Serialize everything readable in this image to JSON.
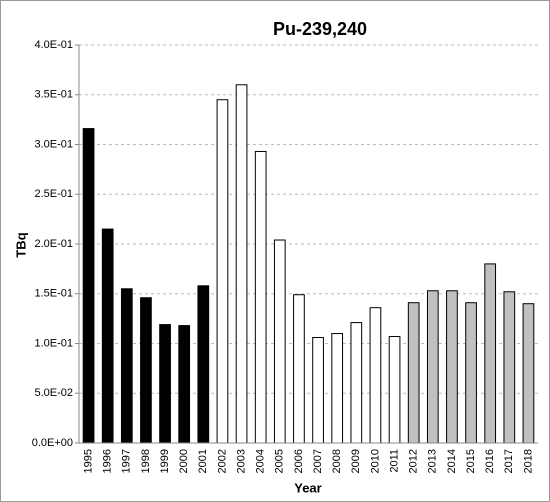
{
  "chart_data": {
    "type": "bar",
    "title": "Pu-239,240",
    "x_label": "Year",
    "y_label": "TBq",
    "categories": [
      "1995",
      "1996",
      "1997",
      "1998",
      "1999",
      "2000",
      "2001",
      "2002",
      "2003",
      "2004",
      "2005",
      "2006",
      "2007",
      "2008",
      "2009",
      "2010",
      "2011",
      "2012",
      "2013",
      "2014",
      "2015",
      "2016",
      "2017",
      "2018"
    ],
    "values": [
      0.316,
      0.215,
      0.155,
      0.146,
      0.119,
      0.118,
      0.158,
      0.345,
      0.36,
      0.293,
      0.204,
      0.149,
      0.106,
      0.11,
      0.121,
      0.136,
      0.107,
      0.141,
      0.153,
      0.153,
      0.141,
      0.18,
      0.152,
      0.14
    ],
    "colors": [
      "#000000",
      "#000000",
      "#000000",
      "#000000",
      "#000000",
      "#000000",
      "#000000",
      "#ffffff",
      "#ffffff",
      "#ffffff",
      "#ffffff",
      "#ffffff",
      "#ffffff",
      "#ffffff",
      "#ffffff",
      "#ffffff",
      "#ffffff",
      "#c0c0c0",
      "#c0c0c0",
      "#c0c0c0",
      "#c0c0c0",
      "#c0c0c0",
      "#c0c0c0",
      "#c0c0c0"
    ],
    "ylim": [
      0,
      0.4
    ],
    "yticks": [
      {
        "value": 0,
        "label": "0.0E+00"
      },
      {
        "value": 0.05,
        "label": "5.0E-02"
      },
      {
        "value": 0.1,
        "label": "1.0E-01"
      },
      {
        "value": 0.15,
        "label": "1.5E-01"
      },
      {
        "value": 0.2,
        "label": "2.0E-01"
      },
      {
        "value": 0.25,
        "label": "2.5E-01"
      },
      {
        "value": 0.3,
        "label": "3.0E-01"
      },
      {
        "value": 0.35,
        "label": "3.5E-01"
      },
      {
        "value": 0.4,
        "label": "4.0E-01"
      }
    ],
    "grid": true
  }
}
